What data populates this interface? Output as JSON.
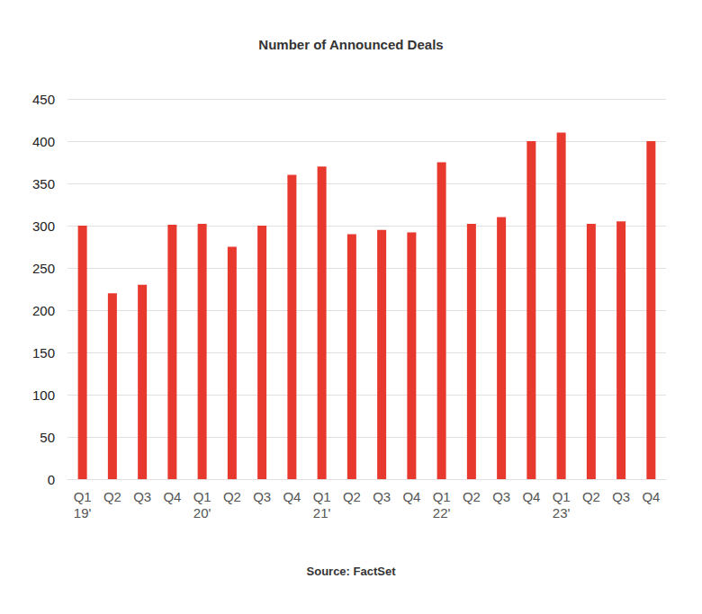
{
  "chart_data": {
    "type": "bar",
    "title": "Number of Announced Deals",
    "source": "Source: FactSet",
    "categories": [
      "Q1\n19'",
      "Q2",
      "Q3",
      "Q4",
      "Q1\n20'",
      "Q2",
      "Q3",
      "Q4",
      "Q1\n21'",
      "Q2",
      "Q3",
      "Q4",
      "Q1\n22'",
      "Q2",
      "Q3",
      "Q4",
      "Q1\n23'",
      "Q2",
      "Q3",
      "Q4"
    ],
    "values": [
      300,
      220,
      230,
      301,
      302,
      275,
      300,
      360,
      370,
      290,
      295,
      292,
      375,
      302,
      310,
      400,
      410,
      302,
      305,
      400
    ],
    "color": "#e8392f",
    "ylim": [
      0,
      450
    ],
    "yticks": [
      0,
      50,
      100,
      150,
      200,
      250,
      300,
      350,
      400,
      450
    ],
    "grid": true
  }
}
